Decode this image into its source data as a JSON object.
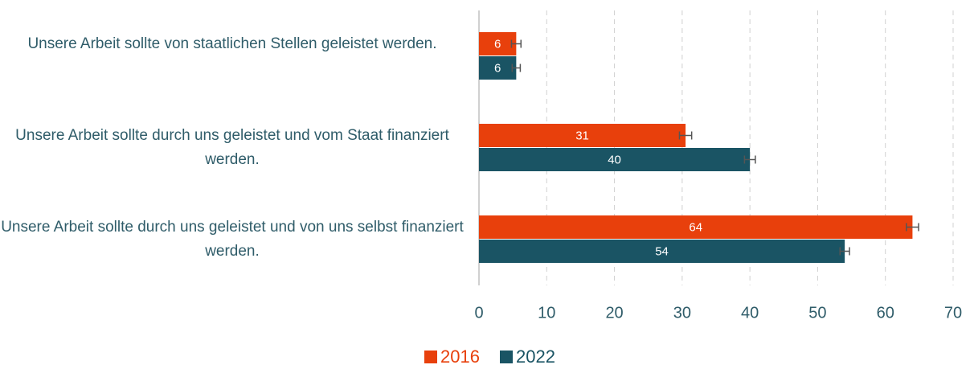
{
  "chart_data": {
    "type": "bar",
    "orientation": "horizontal",
    "categories": [
      "Unsere Arbeit sollte von staatlichen Stellen geleistet werden.",
      "Unsere Arbeit sollte durch uns geleistet und vom Staat finanziert werden.",
      "Unsere Arbeit sollte durch uns geleistet und von uns selbst finanziert werden."
    ],
    "series": [
      {
        "name": "2016",
        "color": "#e8400c",
        "values": [
          5.5,
          30.5,
          64
        ],
        "value_labels": [
          "6",
          "31",
          "64"
        ],
        "errors": [
          0.7,
          0.9,
          0.9
        ]
      },
      {
        "name": "2022",
        "color": "#1a5464",
        "values": [
          5.5,
          40,
          54
        ],
        "value_labels": [
          "6",
          "40",
          "54"
        ],
        "errors": [
          0.6,
          0.8,
          0.7
        ]
      }
    ],
    "xlim": [
      0,
      70
    ],
    "xticks": [
      0,
      10,
      20,
      30,
      40,
      50,
      60,
      70
    ],
    "grid": true,
    "legend": "bottom"
  }
}
